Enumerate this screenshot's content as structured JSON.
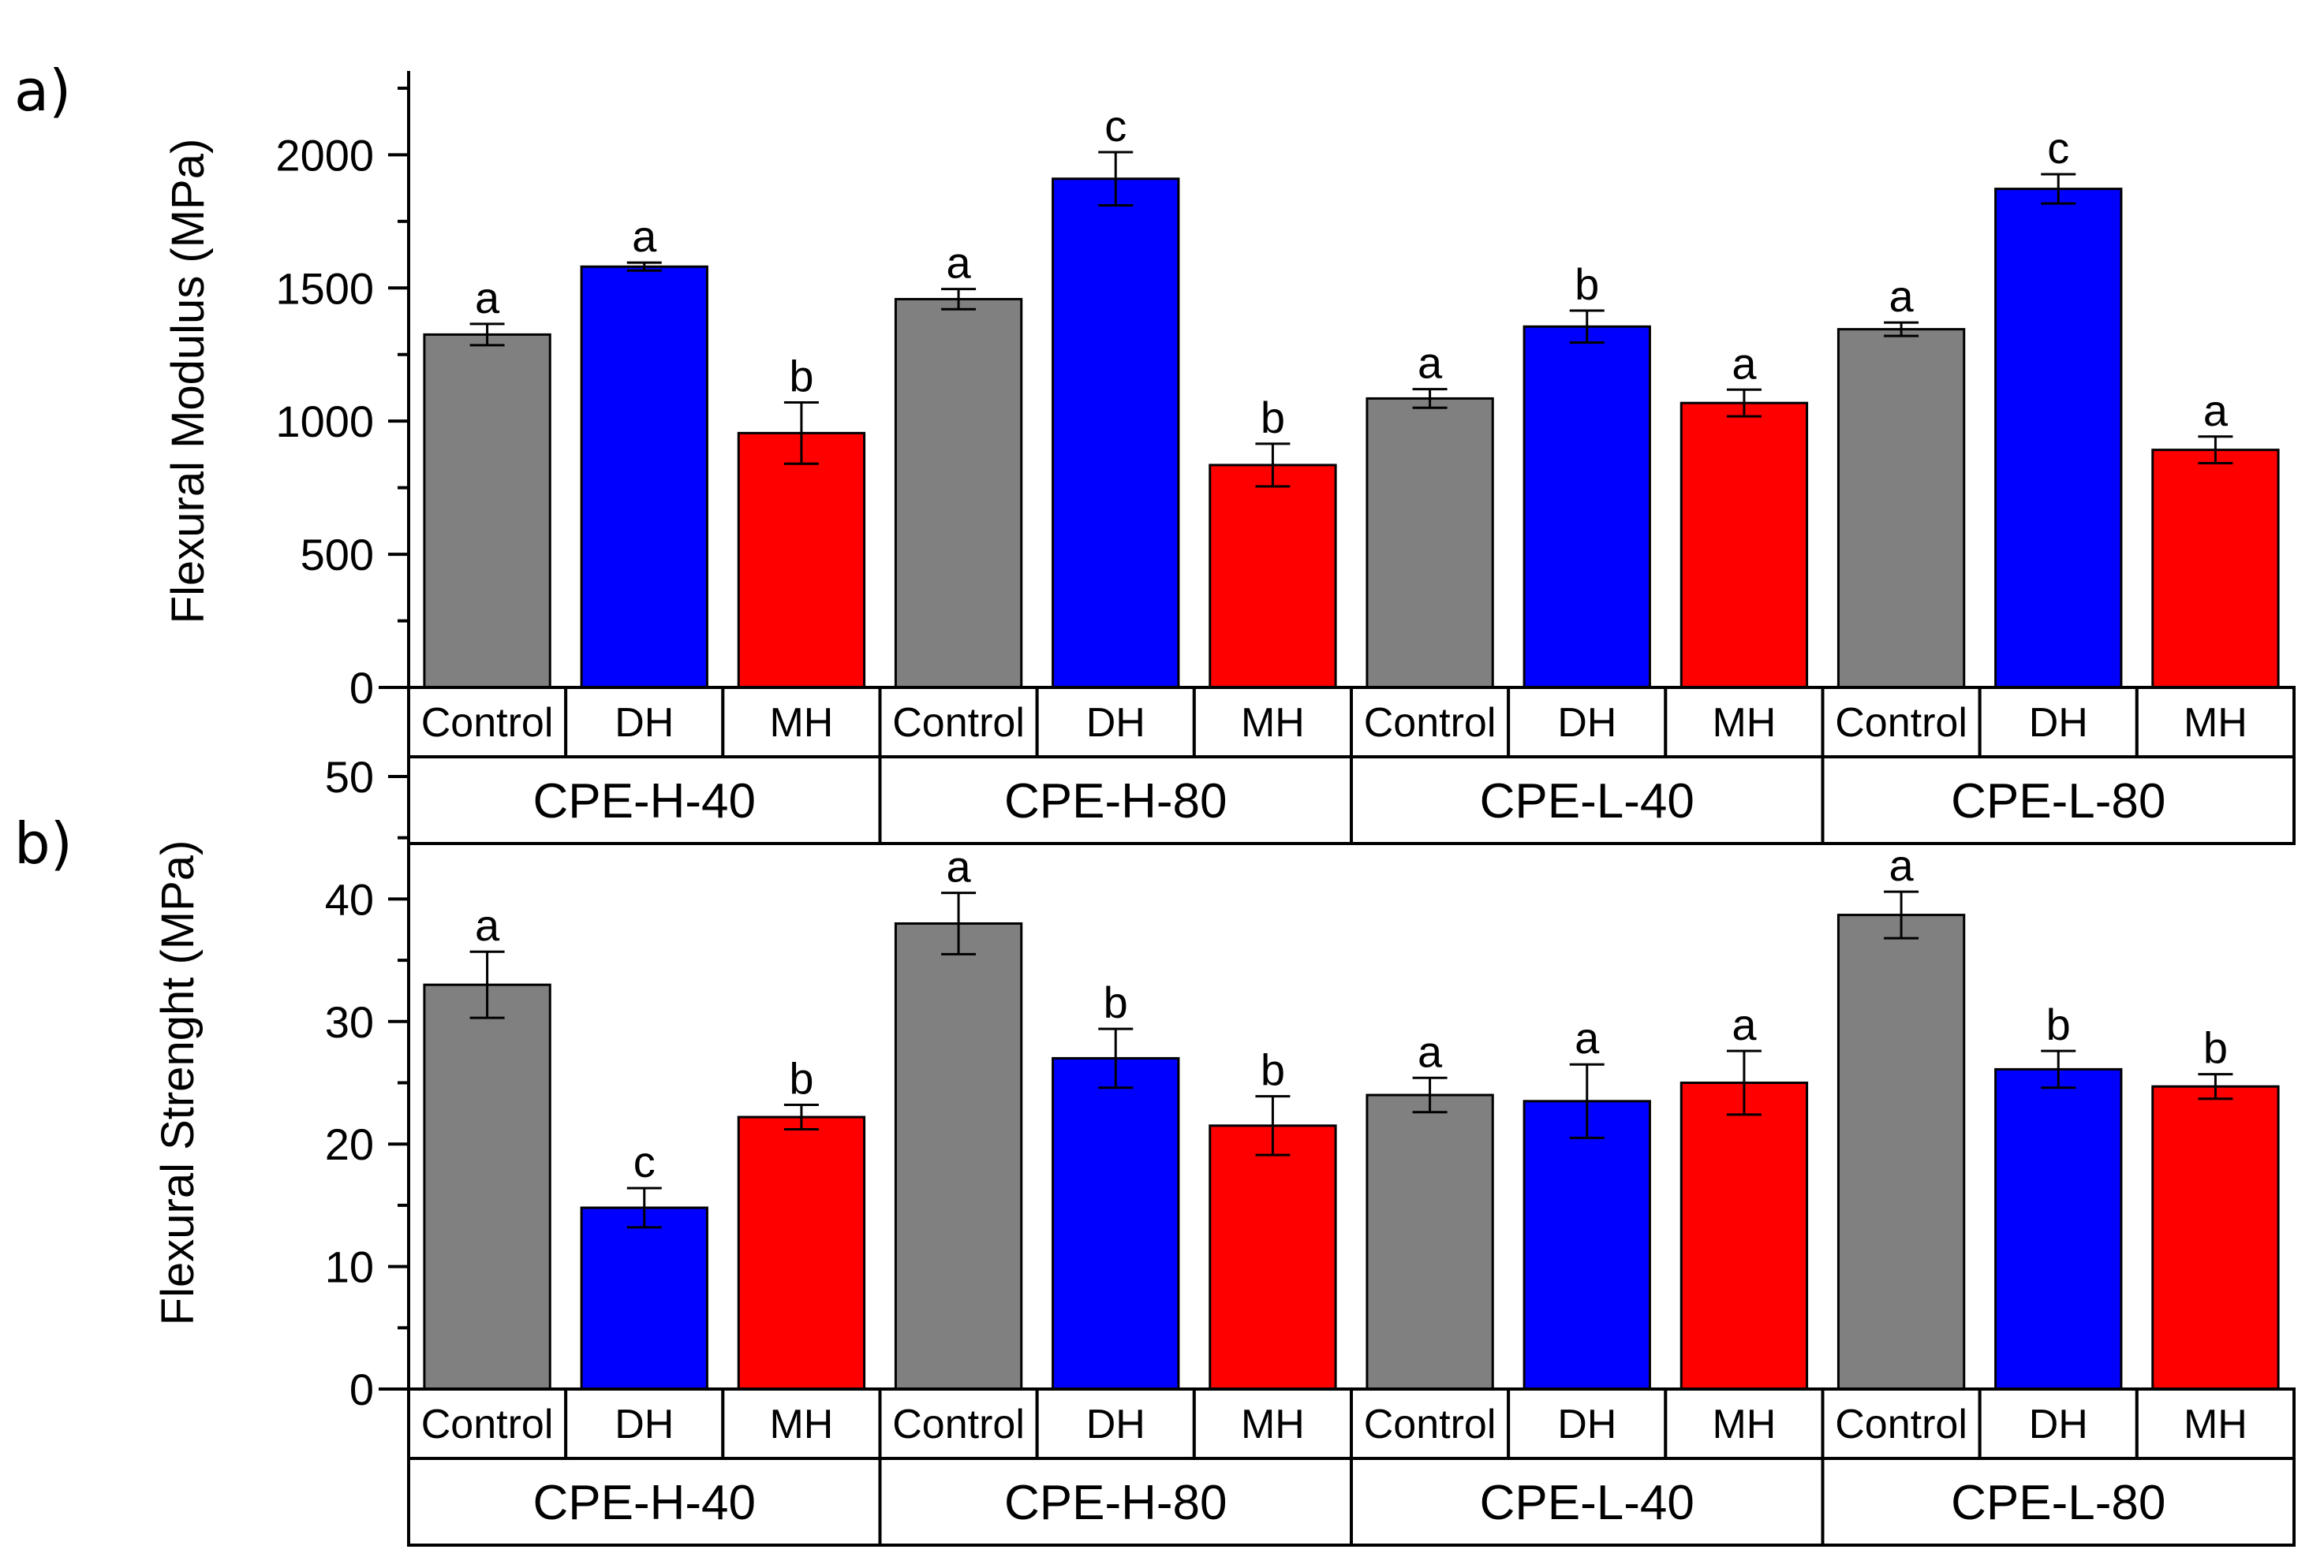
{
  "figure": {
    "panel_labels": [
      "a)",
      "b)"
    ]
  },
  "colors": {
    "Control": "#808080",
    "DH": "#0000ff",
    "MH": "#ff0000"
  },
  "chart_data": [
    {
      "type": "bar",
      "panel": "a)",
      "ylabel": "Flexural Modulus (MPa)",
      "ylim": [
        0,
        2300
      ],
      "yticks": [
        0,
        500,
        1000,
        1500,
        2000
      ],
      "groups": [
        "CPE-H-40",
        "CPE-H-80",
        "CPE-L-40",
        "CPE-L-80"
      ],
      "categories": [
        "Control",
        "DH",
        "MH"
      ],
      "bars": [
        {
          "group": "CPE-H-40",
          "category": "Control",
          "value": 1325,
          "error": 40,
          "sig": "a"
        },
        {
          "group": "CPE-H-40",
          "category": "DH",
          "value": 1580,
          "error": 15,
          "sig": "a"
        },
        {
          "group": "CPE-H-40",
          "category": "MH",
          "value": 955,
          "error": 115,
          "sig": "b"
        },
        {
          "group": "CPE-H-80",
          "category": "Control",
          "value": 1458,
          "error": 38,
          "sig": "a"
        },
        {
          "group": "CPE-H-80",
          "category": "DH",
          "value": 1910,
          "error": 100,
          "sig": "c"
        },
        {
          "group": "CPE-H-80",
          "category": "MH",
          "value": 835,
          "error": 80,
          "sig": "b"
        },
        {
          "group": "CPE-L-40",
          "category": "Control",
          "value": 1085,
          "error": 35,
          "sig": "a"
        },
        {
          "group": "CPE-L-40",
          "category": "DH",
          "value": 1355,
          "error": 60,
          "sig": "b"
        },
        {
          "group": "CPE-L-40",
          "category": "MH",
          "value": 1068,
          "error": 50,
          "sig": "a"
        },
        {
          "group": "CPE-L-80",
          "category": "Control",
          "value": 1345,
          "error": 25,
          "sig": "a"
        },
        {
          "group": "CPE-L-80",
          "category": "DH",
          "value": 1872,
          "error": 55,
          "sig": "c"
        },
        {
          "group": "CPE-L-80",
          "category": "MH",
          "value": 892,
          "error": 50,
          "sig": "a"
        }
      ]
    },
    {
      "type": "bar",
      "panel": "b)",
      "ylabel": "Flexural Strenght (MPa)",
      "ylim": [
        0,
        50
      ],
      "yticks": [
        0,
        10,
        20,
        30,
        40,
        50
      ],
      "groups": [
        "CPE-H-40",
        "CPE-H-80",
        "CPE-L-40",
        "CPE-L-80"
      ],
      "categories": [
        "Control",
        "DH",
        "MH"
      ],
      "bars": [
        {
          "group": "CPE-H-40",
          "category": "Control",
          "value": 33.0,
          "error": 2.7,
          "sig": "a"
        },
        {
          "group": "CPE-H-40",
          "category": "DH",
          "value": 14.8,
          "error": 1.6,
          "sig": "c"
        },
        {
          "group": "CPE-H-40",
          "category": "MH",
          "value": 22.2,
          "error": 1.0,
          "sig": "b"
        },
        {
          "group": "CPE-H-80",
          "category": "Control",
          "value": 38.0,
          "error": 2.5,
          "sig": "a"
        },
        {
          "group": "CPE-H-80",
          "category": "DH",
          "value": 27.0,
          "error": 2.4,
          "sig": "b"
        },
        {
          "group": "CPE-H-80",
          "category": "MH",
          "value": 21.5,
          "error": 2.4,
          "sig": "b"
        },
        {
          "group": "CPE-L-40",
          "category": "Control",
          "value": 24.0,
          "error": 1.4,
          "sig": "a"
        },
        {
          "group": "CPE-L-40",
          "category": "DH",
          "value": 23.5,
          "error": 3.0,
          "sig": "a"
        },
        {
          "group": "CPE-L-40",
          "category": "MH",
          "value": 25.0,
          "error": 2.6,
          "sig": "a"
        },
        {
          "group": "CPE-L-80",
          "category": "Control",
          "value": 38.7,
          "error": 1.9,
          "sig": "a"
        },
        {
          "group": "CPE-L-80",
          "category": "DH",
          "value": 26.1,
          "error": 1.5,
          "sig": "b"
        },
        {
          "group": "CPE-L-80",
          "category": "MH",
          "value": 24.7,
          "error": 1.0,
          "sig": "b"
        }
      ]
    }
  ]
}
